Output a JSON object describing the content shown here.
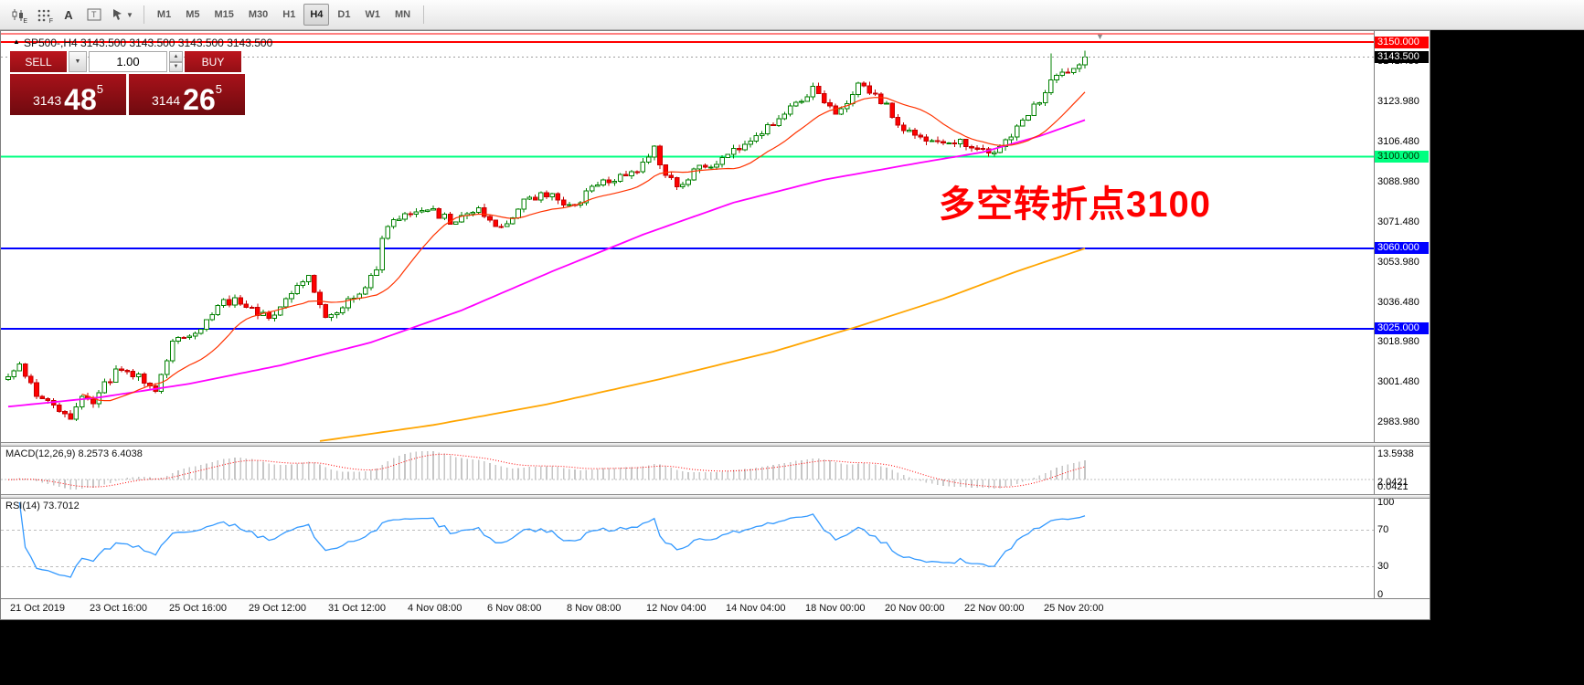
{
  "toolbar": {
    "tool_icons": [
      {
        "name": "candlestick-chart-icon",
        "label": "E"
      },
      {
        "name": "indicator-grid-icon",
        "label": "F"
      },
      {
        "name": "text-label-icon",
        "label": "A"
      },
      {
        "name": "text-box-icon",
        "label": "T"
      },
      {
        "name": "cursor-tools-icon",
        "label": ""
      }
    ],
    "timeframes": [
      "M1",
      "M5",
      "M15",
      "M30",
      "H1",
      "H4",
      "D1",
      "W1",
      "MN"
    ],
    "active_timeframe": "H4"
  },
  "chart": {
    "symbol_title": "SP500-,H4 3143.500 3143.500 3143.500 3143.500",
    "annotation": "多空转折点3100",
    "trade": {
      "sell_label": "SELL",
      "buy_label": "BUY",
      "volume": "1.00",
      "sell_price": {
        "prefix": "3143",
        "big": "48",
        "sup": "5"
      },
      "buy_price": {
        "prefix": "3144",
        "big": "26",
        "sup": "5"
      }
    },
    "hlines": [
      {
        "price": 3150.0,
        "label": "3150.000",
        "color": "#ff0000",
        "label_bg": "#ff0000",
        "label_fg": "#ffffff"
      },
      {
        "price": 3100.0,
        "label": "3100.000",
        "color": "#00ff80",
        "label_bg": "#00ff80",
        "label_fg": "#003300"
      },
      {
        "price": 3060.0,
        "label": "3060.000",
        "color": "#0000ff",
        "label_bg": "#0000ff",
        "label_fg": "#ffffff"
      },
      {
        "price": 3025.0,
        "label": "3025.000",
        "color": "#0000ff",
        "label_bg": "#0000ff",
        "label_fg": "#ffffff"
      }
    ],
    "bid": {
      "price": 3143.5,
      "label": "3143.500"
    },
    "axis_labels": [
      "3141.480",
      "3123.980",
      "3106.480",
      "3088.980",
      "3071.480",
      "3053.980",
      "3036.480",
      "3018.980",
      "3001.480",
      "2983.980"
    ]
  },
  "macd": {
    "title": "MACD(12,26,9) 8.2573 6.4038",
    "axis": [
      "13.5938",
      "2.0421",
      "0.0421"
    ]
  },
  "rsi": {
    "title": "RSI(14) 73.7012",
    "axis": [
      "100",
      "70",
      "30",
      "0"
    ],
    "levels": [
      70,
      30
    ]
  },
  "time_axis": [
    "21 Oct 2019",
    "23 Oct 16:00",
    "25 Oct 16:00",
    "29 Oct 12:00",
    "31 Oct 12:00",
    "4 Nov 08:00",
    "6 Nov 08:00",
    "8 Nov 08:00",
    "12 Nov 04:00",
    "14 Nov 04:00",
    "18 Nov 00:00",
    "20 Nov 00:00",
    "22 Nov 00:00",
    "25 Nov 20:00"
  ],
  "chart_data": {
    "type": "candlestick",
    "symbol": "SP500-",
    "timeframe": "H4",
    "price_range_top": 3150.0,
    "price_range_bottom": 2976.0,
    "last_close": 3143.5,
    "close_waypoints": [
      [
        0,
        3004
      ],
      [
        2,
        3008
      ],
      [
        5,
        2997
      ],
      [
        8,
        2990
      ],
      [
        11,
        2984.5
      ],
      [
        13,
        2996
      ],
      [
        15,
        2993
      ],
      [
        17,
        3001
      ],
      [
        20,
        3008
      ],
      [
        23,
        3004
      ],
      [
        26,
        2998.5
      ],
      [
        28,
        3010
      ],
      [
        29,
        3021
      ],
      [
        32,
        3022
      ],
      [
        34,
        3025
      ],
      [
        37,
        3036
      ],
      [
        41,
        3037
      ],
      [
        44,
        3032
      ],
      [
        46,
        3029
      ],
      [
        50,
        3041
      ],
      [
        53,
        3047
      ],
      [
        56,
        3030
      ],
      [
        58,
        3033
      ],
      [
        60,
        3038
      ],
      [
        63,
        3043
      ],
      [
        65,
        3052
      ],
      [
        66,
        3066
      ],
      [
        68,
        3071
      ],
      [
        70,
        3074
      ],
      [
        73,
        3077
      ],
      [
        75,
        3076
      ],
      [
        79,
        3071
      ],
      [
        83,
        3078
      ],
      [
        85,
        3073
      ],
      [
        87,
        3068
      ],
      [
        91,
        3081
      ],
      [
        95,
        3084
      ],
      [
        98,
        3080
      ],
      [
        100,
        3079
      ],
      [
        104,
        3088
      ],
      [
        108,
        3091
      ],
      [
        112,
        3096
      ],
      [
        114,
        3103
      ],
      [
        116,
        3092
      ],
      [
        118,
        3087
      ],
      [
        122,
        3095
      ],
      [
        126,
        3099
      ],
      [
        130,
        3106
      ],
      [
        134,
        3113
      ],
      [
        138,
        3121
      ],
      [
        142,
        3129
      ],
      [
        144,
        3124
      ],
      [
        146,
        3118
      ],
      [
        148,
        3124
      ],
      [
        150,
        3131
      ],
      [
        152,
        3128
      ],
      [
        155,
        3122
      ],
      [
        158,
        3112
      ],
      [
        162,
        3108
      ],
      [
        167,
        3107
      ],
      [
        171,
        3104
      ],
      [
        174,
        3101
      ],
      [
        178,
        3113
      ],
      [
        182,
        3125
      ],
      [
        184,
        3133
      ],
      [
        187,
        3137
      ],
      [
        190,
        3143.5
      ]
    ],
    "wick_spikes": [
      [
        184,
        3145
      ]
    ],
    "ma_mid_waypoints": [
      [
        0,
        2991
      ],
      [
        16,
        2995
      ],
      [
        32,
        3001
      ],
      [
        48,
        3009
      ],
      [
        64,
        3019
      ],
      [
        80,
        3033
      ],
      [
        96,
        3050
      ],
      [
        112,
        3066
      ],
      [
        128,
        3080
      ],
      [
        144,
        3090
      ],
      [
        160,
        3097
      ],
      [
        172,
        3102
      ],
      [
        182,
        3109
      ],
      [
        190,
        3116
      ]
    ],
    "ma_slow_waypoints": [
      [
        55,
        2976
      ],
      [
        75,
        2983
      ],
      [
        95,
        2992
      ],
      [
        115,
        3003
      ],
      [
        135,
        3015
      ],
      [
        150,
        3026
      ],
      [
        165,
        3038
      ],
      [
        178,
        3050
      ],
      [
        190,
        3060
      ]
    ],
    "ma_fast_period": 14,
    "macd_params": [
      12,
      26,
      9
    ],
    "rsi_period": 14,
    "colors": {
      "up_fill": "#ffffff",
      "up_stroke": "#008000",
      "down_fill": "#ff0000",
      "down_stroke": "#c40000",
      "ma_fast": "#ff3300",
      "ma_mid": "#ff00ff",
      "ma_slow": "#ffa500",
      "bid_line": "#9f9f9f",
      "macd_hist": "#c6c6c6",
      "macd_signal": "#ff0000",
      "rsi_line": "#3399ff",
      "level_dash": "#bdbdbd"
    }
  }
}
